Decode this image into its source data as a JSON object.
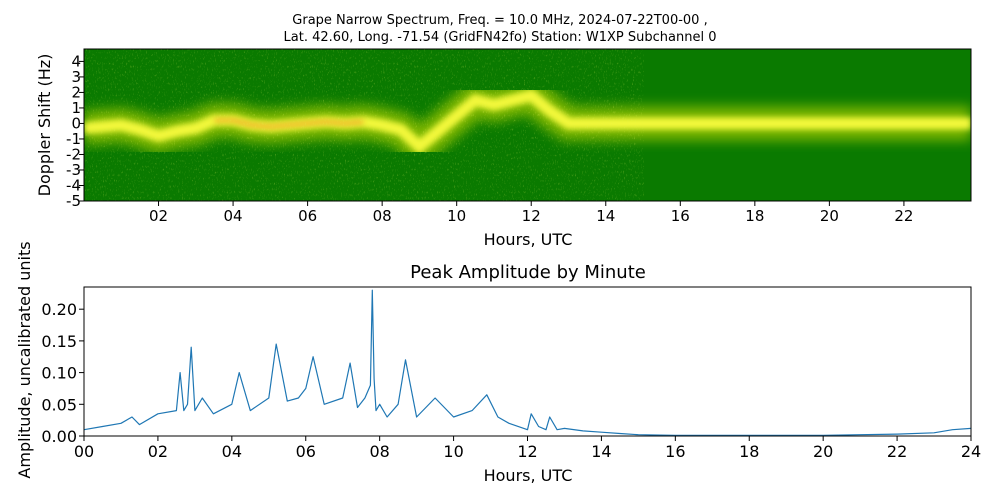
{
  "figure": {
    "title_line1": "Grape Narrow Spectrum, Freq. = 10.0 MHz, 2024-07-22T00-00 ,",
    "title_line2": "Lat.  42.60, Long. -71.54 (GridFN42fo) Station: W1XP Subchannel 0"
  },
  "chart_data": [
    {
      "type": "heatmap",
      "title": "",
      "xlabel": "Hours, UTC",
      "ylabel": "Doppler Shift (Hz)",
      "xlim": [
        0,
        23.8
      ],
      "ylim": [
        -5,
        4.8
      ],
      "xticks": [
        2,
        4,
        6,
        8,
        10,
        12,
        14,
        16,
        18,
        20,
        22
      ],
      "xtick_labels": [
        "02",
        "04",
        "06",
        "08",
        "10",
        "12",
        "14",
        "16",
        "18",
        "20",
        "22"
      ],
      "yticks": [
        4,
        3,
        2,
        1,
        0,
        -1,
        -2,
        -3,
        -4,
        -5
      ],
      "ytick_labels": [
        "4",
        "3",
        "2",
        "1",
        "0",
        "-1",
        "-2",
        "-3",
        "-4",
        "-5"
      ],
      "colors": {
        "background": "#0a7a00",
        "mid": "#d8e800",
        "high": "#ffff40",
        "peak": "#e82000"
      },
      "doppler_trace": {
        "hours": [
          0,
          0.5,
          1,
          1.5,
          2,
          2.5,
          3,
          3.5,
          4,
          4.5,
          5,
          5.5,
          6,
          6.5,
          7,
          7.5,
          8,
          8.5,
          9,
          9.5,
          10,
          10.5,
          11,
          11.5,
          12,
          12.5,
          13,
          13.5,
          14,
          15,
          16,
          17,
          18,
          19,
          20,
          21,
          22,
          23,
          23.8
        ],
        "shift_hz": [
          -0.3,
          -0.2,
          -0.1,
          -0.4,
          -0.8,
          -0.5,
          -0.3,
          0.2,
          0.2,
          -0.1,
          -0.2,
          -0.1,
          0.0,
          0.1,
          0.0,
          0.1,
          -0.1,
          -0.4,
          -1.5,
          -0.5,
          0.5,
          1.5,
          1.2,
          1.5,
          1.8,
          0.8,
          0.0,
          0.0,
          0.0,
          0.0,
          0.0,
          0.0,
          0.0,
          0.0,
          0.0,
          0.0,
          0.0,
          0.0,
          0.0
        ]
      }
    },
    {
      "type": "line",
      "title": "Peak Amplitude by Minute",
      "xlabel": "Hours, UTC",
      "ylabel": "Amplitude, uncalibrated units",
      "xlim": [
        0,
        24
      ],
      "ylim": [
        0,
        0.235
      ],
      "xticks": [
        0,
        2,
        4,
        6,
        8,
        10,
        12,
        14,
        16,
        18,
        20,
        22,
        24
      ],
      "xtick_labels": [
        "00",
        "02",
        "04",
        "06",
        "08",
        "10",
        "12",
        "14",
        "16",
        "18",
        "20",
        "22",
        "24"
      ],
      "yticks": [
        0.0,
        0.05,
        0.1,
        0.15,
        0.2
      ],
      "ytick_labels": [
        "0.00",
        "0.05",
        "0.10",
        "0.15",
        "0.20"
      ],
      "line_color": "#1f77b4",
      "x": [
        0,
        0.5,
        1.0,
        1.3,
        1.5,
        2.0,
        2.5,
        2.6,
        2.7,
        2.8,
        2.9,
        3.0,
        3.2,
        3.5,
        4.0,
        4.2,
        4.5,
        5.0,
        5.2,
        5.5,
        5.8,
        6.0,
        6.2,
        6.5,
        7.0,
        7.2,
        7.4,
        7.6,
        7.75,
        7.8,
        7.85,
        7.9,
        8.0,
        8.2,
        8.5,
        8.7,
        9.0,
        9.5,
        10.0,
        10.5,
        10.9,
        11.2,
        11.5,
        12.0,
        12.1,
        12.3,
        12.5,
        12.6,
        12.8,
        13.0,
        13.5,
        14.0,
        14.5,
        15.0,
        16.0,
        17.0,
        18.0,
        19.0,
        20.0,
        21.0,
        22.0,
        23.0,
        23.5,
        24.0
      ],
      "y": [
        0.01,
        0.015,
        0.02,
        0.03,
        0.018,
        0.035,
        0.04,
        0.1,
        0.04,
        0.05,
        0.14,
        0.04,
        0.06,
        0.035,
        0.05,
        0.1,
        0.04,
        0.06,
        0.145,
        0.055,
        0.06,
        0.075,
        0.125,
        0.05,
        0.06,
        0.115,
        0.045,
        0.06,
        0.08,
        0.23,
        0.09,
        0.04,
        0.05,
        0.03,
        0.05,
        0.12,
        0.03,
        0.06,
        0.03,
        0.04,
        0.065,
        0.03,
        0.02,
        0.01,
        0.035,
        0.015,
        0.01,
        0.03,
        0.01,
        0.012,
        0.008,
        0.006,
        0.004,
        0.002,
        0.001,
        0.001,
        0.001,
        0.001,
        0.001,
        0.002,
        0.003,
        0.005,
        0.01,
        0.012
      ]
    }
  ]
}
